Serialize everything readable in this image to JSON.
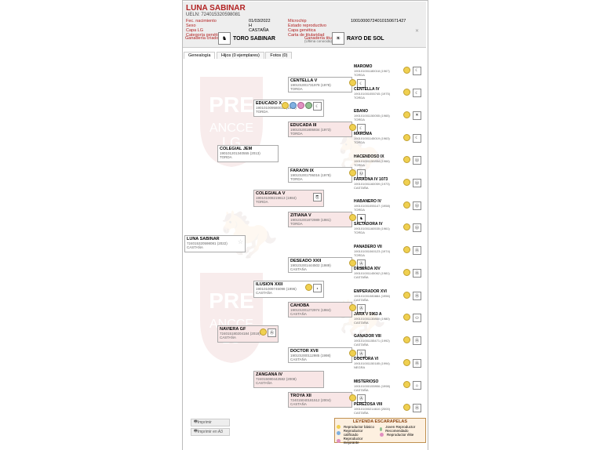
{
  "header": {
    "name": "LUNA SABINAR",
    "ueln": "UELN: 724015320598081",
    "col1_labels": [
      "Fec. nacimiento",
      "Sexo",
      "Capa LG",
      "Categoría genética"
    ],
    "col1_values": [
      "01/03/2022",
      "H",
      "CASTAÑA",
      ""
    ],
    "col2_labels": [
      "Microchip",
      "Estado reproductivo",
      "Capa genética",
      "Carta de titularidad"
    ],
    "col2_values": [
      "10010000724010150671427",
      "",
      "",
      ""
    ],
    "ganaderia_criadora_lbl": "Ganadería criadora",
    "ganaderia_titular_lbl": "Ganadería titular",
    "sire": "TORO SABINAR",
    "dam": "RAYO DE SOL"
  },
  "tabs": {
    "t1": "Genealogía",
    "t2": "Hijos (0 ejemplares)",
    "t3": "Fotos (0)"
  },
  "legend": {
    "title": "LEYENDA ESCARAPELAS",
    "l1": "Reproductor básico",
    "l2": "Reproductor calificado",
    "l3": "Reproductor élite",
    "l4": "Joven Reproductor Recomendado",
    "l5": "Reproductor mejorante"
  },
  "print": {
    "b1": "Imprimir",
    "b2": "Imprimir en A3"
  },
  "subject": {
    "name": "LUNA SABINAR",
    "code": "724015320598081 (2022)",
    "color": "CASTAÑA"
  },
  "gen1": [
    {
      "name": "COLEGIAL JEM",
      "code": "190101201340555 (2013)",
      "color": "TORDA",
      "female": false
    },
    {
      "name": "NAVIERA GF",
      "code": "724015180204184 (2018)",
      "color": "CASTAÑA",
      "female": true
    }
  ],
  "gen2": [
    {
      "name": "EDUCADO X",
      "code": "190101009580025 (1995)",
      "color": "TORDA",
      "female": false
    },
    {
      "name": "COLEGIALA V",
      "code": "190101008219613 (1984)",
      "color": "TORDA",
      "female": true
    },
    {
      "name": "ILUSION XXII",
      "code": "190101009745098 (1996)",
      "color": "CASTAÑA",
      "female": false
    },
    {
      "name": "ZANGANA IV",
      "code": "724015080442582 (2008)",
      "color": "CASTAÑA",
      "female": true
    }
  ],
  "gen3": [
    {
      "name": "CENTELLA V",
      "code": "190101001731978 (1978)",
      "color": "TORDA",
      "female": false
    },
    {
      "name": "EDUCADA III",
      "code": "190101001805934 (1973)",
      "color": "TORDA",
      "female": true
    },
    {
      "name": "FARAON IX",
      "code": "190101001706016 (1978)",
      "color": "TORDA",
      "female": false
    },
    {
      "name": "ZITIANA V",
      "code": "190101001872989 (1981)",
      "color": "TORDA",
      "female": true
    },
    {
      "name": "DESEADO XXII",
      "code": "190101001444502 (1989)",
      "color": "CASTAÑA",
      "female": false
    },
    {
      "name": "CAHOBA",
      "code": "190101001272974 (1984)",
      "color": "CASTAÑA",
      "female": true
    },
    {
      "name": "DOCTOR XVII",
      "code": "190101000112985 (1998)",
      "color": "CASTAÑA",
      "female": false
    },
    {
      "name": "TROYA XII",
      "code": "724015040181512 (2004)",
      "color": "CASTAÑA",
      "female": true
    }
  ],
  "gen4": [
    {
      "name": "MAROMO",
      "code": "190101001180018 (1967)",
      "color": "TORDA"
    },
    {
      "name": "CENTELLA IV",
      "code": "190101001055745 (1975)",
      "color": "TORDA"
    },
    {
      "name": "EBANO",
      "code": "190101001150055 (1965)",
      "color": "TORDA"
    },
    {
      "name": "MAROMA",
      "code": "190101001145019 (1963)",
      "color": "TORDA"
    },
    {
      "name": "HACENDOSO IX",
      "code": "190101001150854 (1966)",
      "color": "TORDA"
    },
    {
      "name": "FARAONA IV 1073",
      "code": "190101001160059 (1973)",
      "color": "CASTAÑA"
    },
    {
      "name": "HABANERO IV",
      "code": "190101001055147 (1958)",
      "color": "TORDA"
    },
    {
      "name": "SALTADORA IV",
      "code": "190101001160535 (1961)",
      "color": "TORDA"
    },
    {
      "name": "PANADERO VII",
      "code": "190101001060123 (1974)",
      "color": "TORDA"
    },
    {
      "name": "DESEADA XIV",
      "code": "190101001145062 (1981)",
      "color": "CASTAÑA"
    },
    {
      "name": "EMPERADOR XVI",
      "code": "190101001080884 (1956)",
      "color": "CASTAÑA"
    },
    {
      "name": "JARA V 5963 A",
      "code": "190101001130860 (1980)",
      "color": "CASTAÑA"
    },
    {
      "name": "GANADOR VIII",
      "code": "190101001155471 (1992)",
      "color": "CASTAÑA"
    },
    {
      "name": "DOCTORA VI",
      "code": "190101001150185 (1994)",
      "color": "NEGRA"
    },
    {
      "name": "MISTERIOSO",
      "code": "190101000155906 (1998)",
      "color": "CASTAÑA"
    },
    {
      "name": "PEREZOSA VIII",
      "code": "190101000214610 (2000)",
      "color": "CASTAÑA"
    }
  ],
  "show_ribbons_gen2_0": true
}
